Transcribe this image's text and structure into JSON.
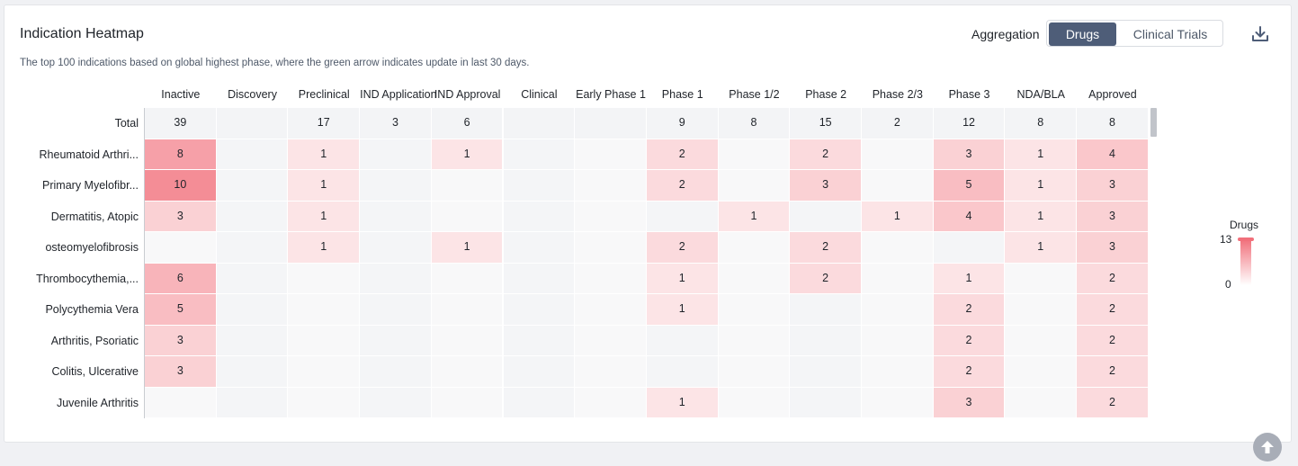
{
  "header": {
    "title": "Indication Heatmap",
    "subtitle": "The top 100 indications based on global highest phase, where the green arrow indicates update in last 30 days.",
    "aggregation_label": "Aggregation",
    "toggle": {
      "active": "Drugs",
      "inactive": "Clinical Trials"
    },
    "download_icon": "download-icon"
  },
  "legend": {
    "title": "Drugs",
    "max": "13",
    "min": "0",
    "color_high": "#f1707b",
    "color_low": "#ffffff"
  },
  "chart_data": {
    "type": "heatmap",
    "columns": [
      "Inactive",
      "Discovery",
      "Preclinical",
      "IND Application",
      "IND Approval",
      "Clinical",
      "Early Phase 1",
      "Phase 1",
      "Phase 1/2",
      "Phase 2",
      "Phase 2/3",
      "Phase 3",
      "NDA/BLA",
      "Approved"
    ],
    "total": {
      "label": "Total",
      "values": [
        39,
        null,
        17,
        3,
        6,
        null,
        null,
        9,
        8,
        15,
        2,
        12,
        8,
        8
      ]
    },
    "rows": [
      {
        "label": "Rheumatoid Arthri...",
        "values": [
          8,
          null,
          1,
          null,
          1,
          null,
          null,
          2,
          null,
          2,
          null,
          3,
          1,
          4
        ]
      },
      {
        "label": "Primary Myelofibr...",
        "values": [
          10,
          null,
          1,
          null,
          null,
          null,
          null,
          2,
          null,
          3,
          null,
          5,
          1,
          3
        ]
      },
      {
        "label": "Dermatitis, Atopic",
        "values": [
          3,
          null,
          1,
          null,
          null,
          null,
          null,
          null,
          1,
          null,
          1,
          4,
          1,
          3
        ]
      },
      {
        "label": "osteomyelofibrosis",
        "values": [
          null,
          null,
          1,
          null,
          1,
          null,
          null,
          2,
          null,
          2,
          null,
          null,
          1,
          3
        ]
      },
      {
        "label": "Thrombocythemia,...",
        "values": [
          6,
          null,
          null,
          null,
          null,
          null,
          null,
          1,
          null,
          2,
          null,
          1,
          null,
          2
        ]
      },
      {
        "label": "Polycythemia Vera",
        "values": [
          5,
          null,
          null,
          null,
          null,
          null,
          null,
          1,
          null,
          null,
          null,
          2,
          null,
          2
        ]
      },
      {
        "label": "Arthritis, Psoriatic",
        "values": [
          3,
          null,
          null,
          null,
          null,
          null,
          null,
          null,
          null,
          null,
          null,
          2,
          null,
          2
        ]
      },
      {
        "label": "Colitis, Ulcerative",
        "values": [
          3,
          null,
          null,
          null,
          null,
          null,
          null,
          null,
          null,
          null,
          null,
          2,
          null,
          2
        ]
      },
      {
        "label": "Juvenile Arthritis",
        "values": [
          null,
          null,
          null,
          null,
          null,
          null,
          null,
          1,
          null,
          null,
          null,
          3,
          null,
          2
        ]
      }
    ],
    "scale_min": 0,
    "scale_max": 13
  }
}
